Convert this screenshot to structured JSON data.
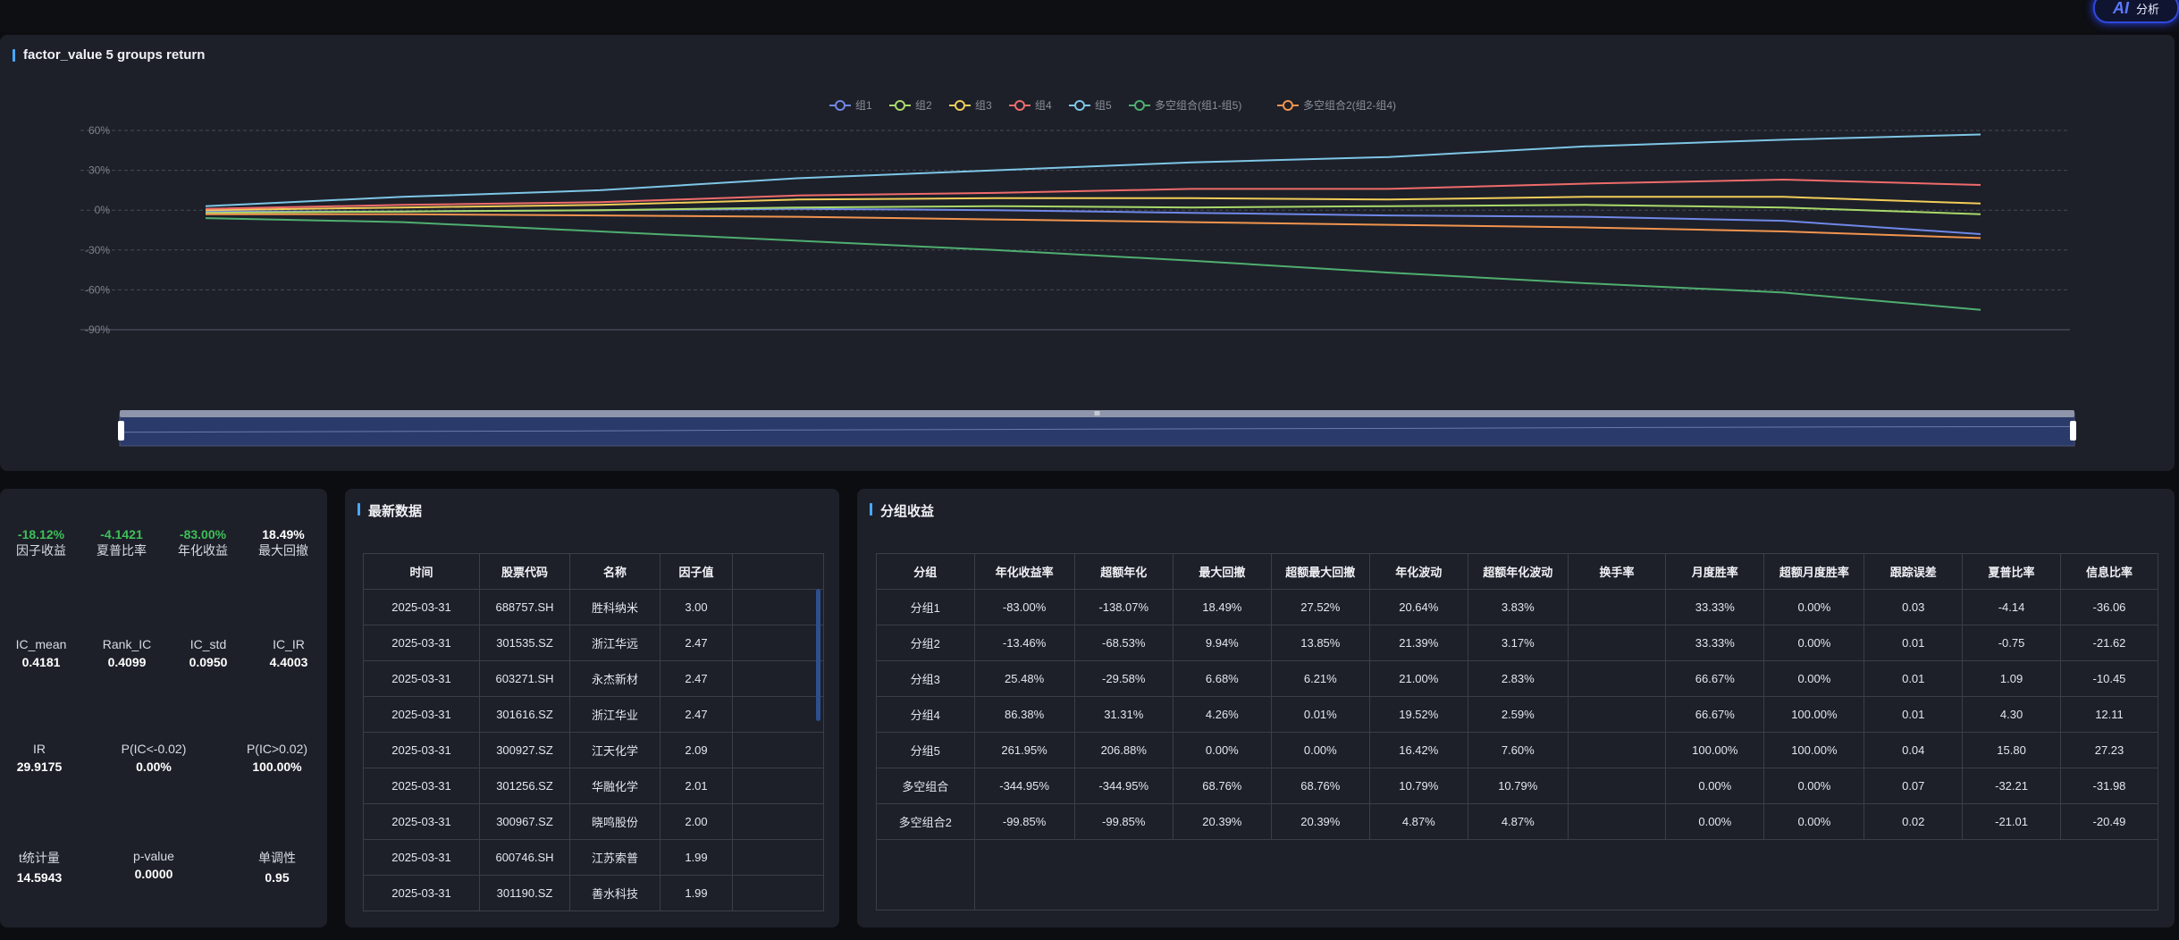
{
  "header": {
    "ai_button_icon": "AI",
    "ai_button_label": "分析"
  },
  "chart_panel": {
    "title": "factor_value 5 groups return"
  },
  "chart_data": {
    "type": "line",
    "y_ticks": [
      "60%",
      "30%",
      "0%",
      "-30%",
      "-60%",
      "-90%"
    ],
    "ylim": [
      -90,
      60
    ],
    "x_points": 10,
    "series": [
      {
        "name": "组1",
        "color": "#6f87e8",
        "values": [
          -1,
          -1,
          0,
          1,
          0,
          -2,
          -4,
          -5,
          -8,
          -18
        ]
      },
      {
        "name": "组2",
        "color": "#a9d96a",
        "values": [
          -2,
          -1,
          0,
          2,
          3,
          2,
          3,
          4,
          2,
          -3
        ]
      },
      {
        "name": "组3",
        "color": "#f1cd58",
        "values": [
          0,
          2,
          4,
          8,
          9,
          9,
          8,
          10,
          10,
          5
        ]
      },
      {
        "name": "组4",
        "color": "#ef6b6b",
        "values": [
          1,
          4,
          6,
          11,
          13,
          16,
          16,
          20,
          23,
          19
        ]
      },
      {
        "name": "组5",
        "color": "#7ec6e6",
        "values": [
          3,
          10,
          15,
          24,
          30,
          36,
          40,
          48,
          53,
          57
        ]
      },
      {
        "name": "多空组合(组1-组5)",
        "color": "#4fae6f",
        "values": [
          -6,
          -9,
          -16,
          -23,
          -30,
          -38,
          -47,
          -55,
          -62,
          -75
        ]
      },
      {
        "name": "多空组合2(组2-组4)",
        "color": "#f2944e",
        "values": [
          -3,
          -3,
          -4,
          -5,
          -7,
          -9,
          -11,
          -13,
          -16,
          -21
        ]
      }
    ],
    "grid": true,
    "legend_position": "top-center",
    "data_zoom": true
  },
  "stats": {
    "row1": [
      {
        "value": "-18.12%",
        "label": "因子收益",
        "color": "green"
      },
      {
        "value": "-4.1421",
        "label": "夏普比率",
        "color": "green"
      },
      {
        "value": "-83.00%",
        "label": "年化收益",
        "color": "green"
      },
      {
        "value": "18.49%",
        "label": "最大回撤",
        "color": "white"
      }
    ],
    "row2": [
      {
        "label": "IC_mean",
        "value": "0.4181"
      },
      {
        "label": "Rank_IC",
        "value": "0.4099"
      },
      {
        "label": "IC_std",
        "value": "0.0950"
      },
      {
        "label": "IC_IR",
        "value": "4.4003"
      }
    ],
    "row3": [
      {
        "label": "IR",
        "value": "29.9175"
      },
      {
        "label": "P(IC<-0.02)",
        "value": "0.00%"
      },
      {
        "label": "P(IC>0.02)",
        "value": "100.00%"
      }
    ],
    "row4": [
      {
        "label": "t统计量",
        "value": "14.5943"
      },
      {
        "label": "p-value",
        "value": "0.0000"
      },
      {
        "label": "单调性",
        "value": "0.95"
      }
    ]
  },
  "latest": {
    "title": "最新数据",
    "headers": [
      "时间",
      "股票代码",
      "名称",
      "因子值"
    ],
    "rows": [
      [
        "2025-03-31",
        "688757.SH",
        "胜科纳米",
        "3.00"
      ],
      [
        "2025-03-31",
        "301535.SZ",
        "浙江华远",
        "2.47"
      ],
      [
        "2025-03-31",
        "603271.SH",
        "永杰新材",
        "2.47"
      ],
      [
        "2025-03-31",
        "301616.SZ",
        "浙江华业",
        "2.47"
      ],
      [
        "2025-03-31",
        "300927.SZ",
        "江天化学",
        "2.09"
      ],
      [
        "2025-03-31",
        "301256.SZ",
        "华融化学",
        "2.01"
      ],
      [
        "2025-03-31",
        "300967.SZ",
        "晓鸣股份",
        "2.00"
      ],
      [
        "2025-03-31",
        "600746.SH",
        "江苏索普",
        "1.99"
      ],
      [
        "2025-03-31",
        "301190.SZ",
        "善水科技",
        "1.99"
      ]
    ]
  },
  "groups": {
    "title": "分组收益",
    "headers": [
      "分组",
      "年化收益率",
      "超额年化",
      "最大回撤",
      "超额最大回撤",
      "年化波动",
      "超额年化波动",
      "换手率",
      "月度胜率",
      "超额月度胜率",
      "跟踪误差",
      "夏普比率",
      "信息比率"
    ],
    "rows": [
      [
        "分组1",
        "-83.00%",
        "-138.07%",
        "18.49%",
        "27.52%",
        "20.64%",
        "3.83%",
        "",
        "33.33%",
        "0.00%",
        "0.03",
        "-4.14",
        "-36.06"
      ],
      [
        "分组2",
        "-13.46%",
        "-68.53%",
        "9.94%",
        "13.85%",
        "21.39%",
        "3.17%",
        "",
        "33.33%",
        "0.00%",
        "0.01",
        "-0.75",
        "-21.62"
      ],
      [
        "分组3",
        "25.48%",
        "-29.58%",
        "6.68%",
        "6.21%",
        "21.00%",
        "2.83%",
        "",
        "66.67%",
        "0.00%",
        "0.01",
        "1.09",
        "-10.45"
      ],
      [
        "分组4",
        "86.38%",
        "31.31%",
        "4.26%",
        "0.01%",
        "19.52%",
        "2.59%",
        "",
        "66.67%",
        "100.00%",
        "0.01",
        "4.30",
        "12.11"
      ],
      [
        "分组5",
        "261.95%",
        "206.88%",
        "0.00%",
        "0.00%",
        "16.42%",
        "7.60%",
        "",
        "100.00%",
        "100.00%",
        "0.04",
        "15.80",
        "27.23"
      ],
      [
        "多空组合",
        "-344.95%",
        "-344.95%",
        "68.76%",
        "68.76%",
        "10.79%",
        "10.79%",
        "",
        "0.00%",
        "0.00%",
        "0.07",
        "-32.21",
        "-31.98"
      ],
      [
        "多空组合2",
        "-99.85%",
        "-99.85%",
        "20.39%",
        "20.39%",
        "4.87%",
        "4.87%",
        "",
        "0.00%",
        "0.00%",
        "0.02",
        "-21.01",
        "-20.49"
      ]
    ]
  }
}
